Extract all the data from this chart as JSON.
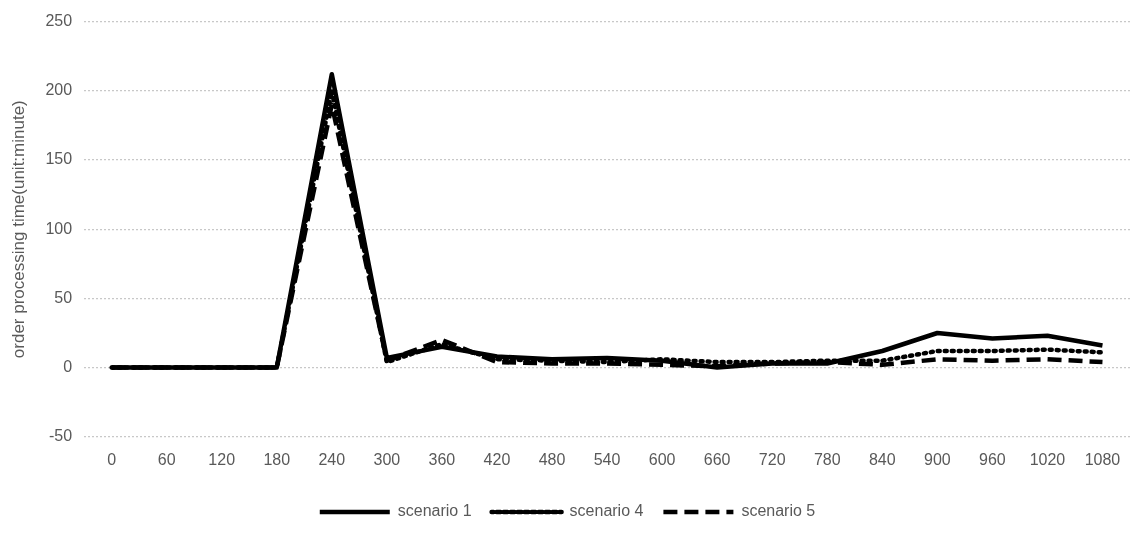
{
  "chart_data": {
    "type": "line",
    "ylabel": "order processing time(unit:minute)",
    "categories": [
      "0",
      "60",
      "120",
      "180",
      "240",
      "300",
      "360",
      "420",
      "480",
      "540",
      "600",
      "660",
      "720",
      "780",
      "840",
      "900",
      "960",
      "1020",
      "1080"
    ],
    "series": [
      {
        "name": "scenario 1",
        "color": "#000000",
        "line_style": "solid",
        "values": [
          0,
          0,
          0,
          0,
          212,
          7,
          15,
          8,
          6,
          7,
          5,
          0,
          3,
          3,
          12,
          25,
          21,
          23,
          16
        ]
      },
      {
        "name": "scenario 4",
        "color": "#000000",
        "line_style": "dotted",
        "values": [
          0,
          0,
          0,
          0,
          200,
          4,
          17,
          6,
          5,
          4,
          6,
          4,
          4,
          5,
          5,
          12,
          12,
          13,
          11
        ]
      },
      {
        "name": "scenario 5",
        "color": "#000000",
        "line_style": "dashed",
        "values": [
          0,
          0,
          0,
          0,
          190,
          5,
          20,
          4,
          3,
          3,
          2,
          1,
          3,
          4,
          2,
          6,
          5,
          6,
          4
        ]
      }
    ],
    "ylim": [
      -50,
      250
    ],
    "yticks": [
      -50,
      0,
      50,
      100,
      150,
      200,
      250
    ],
    "grid": "y",
    "legend": "bottom",
    "marker": "none"
  }
}
